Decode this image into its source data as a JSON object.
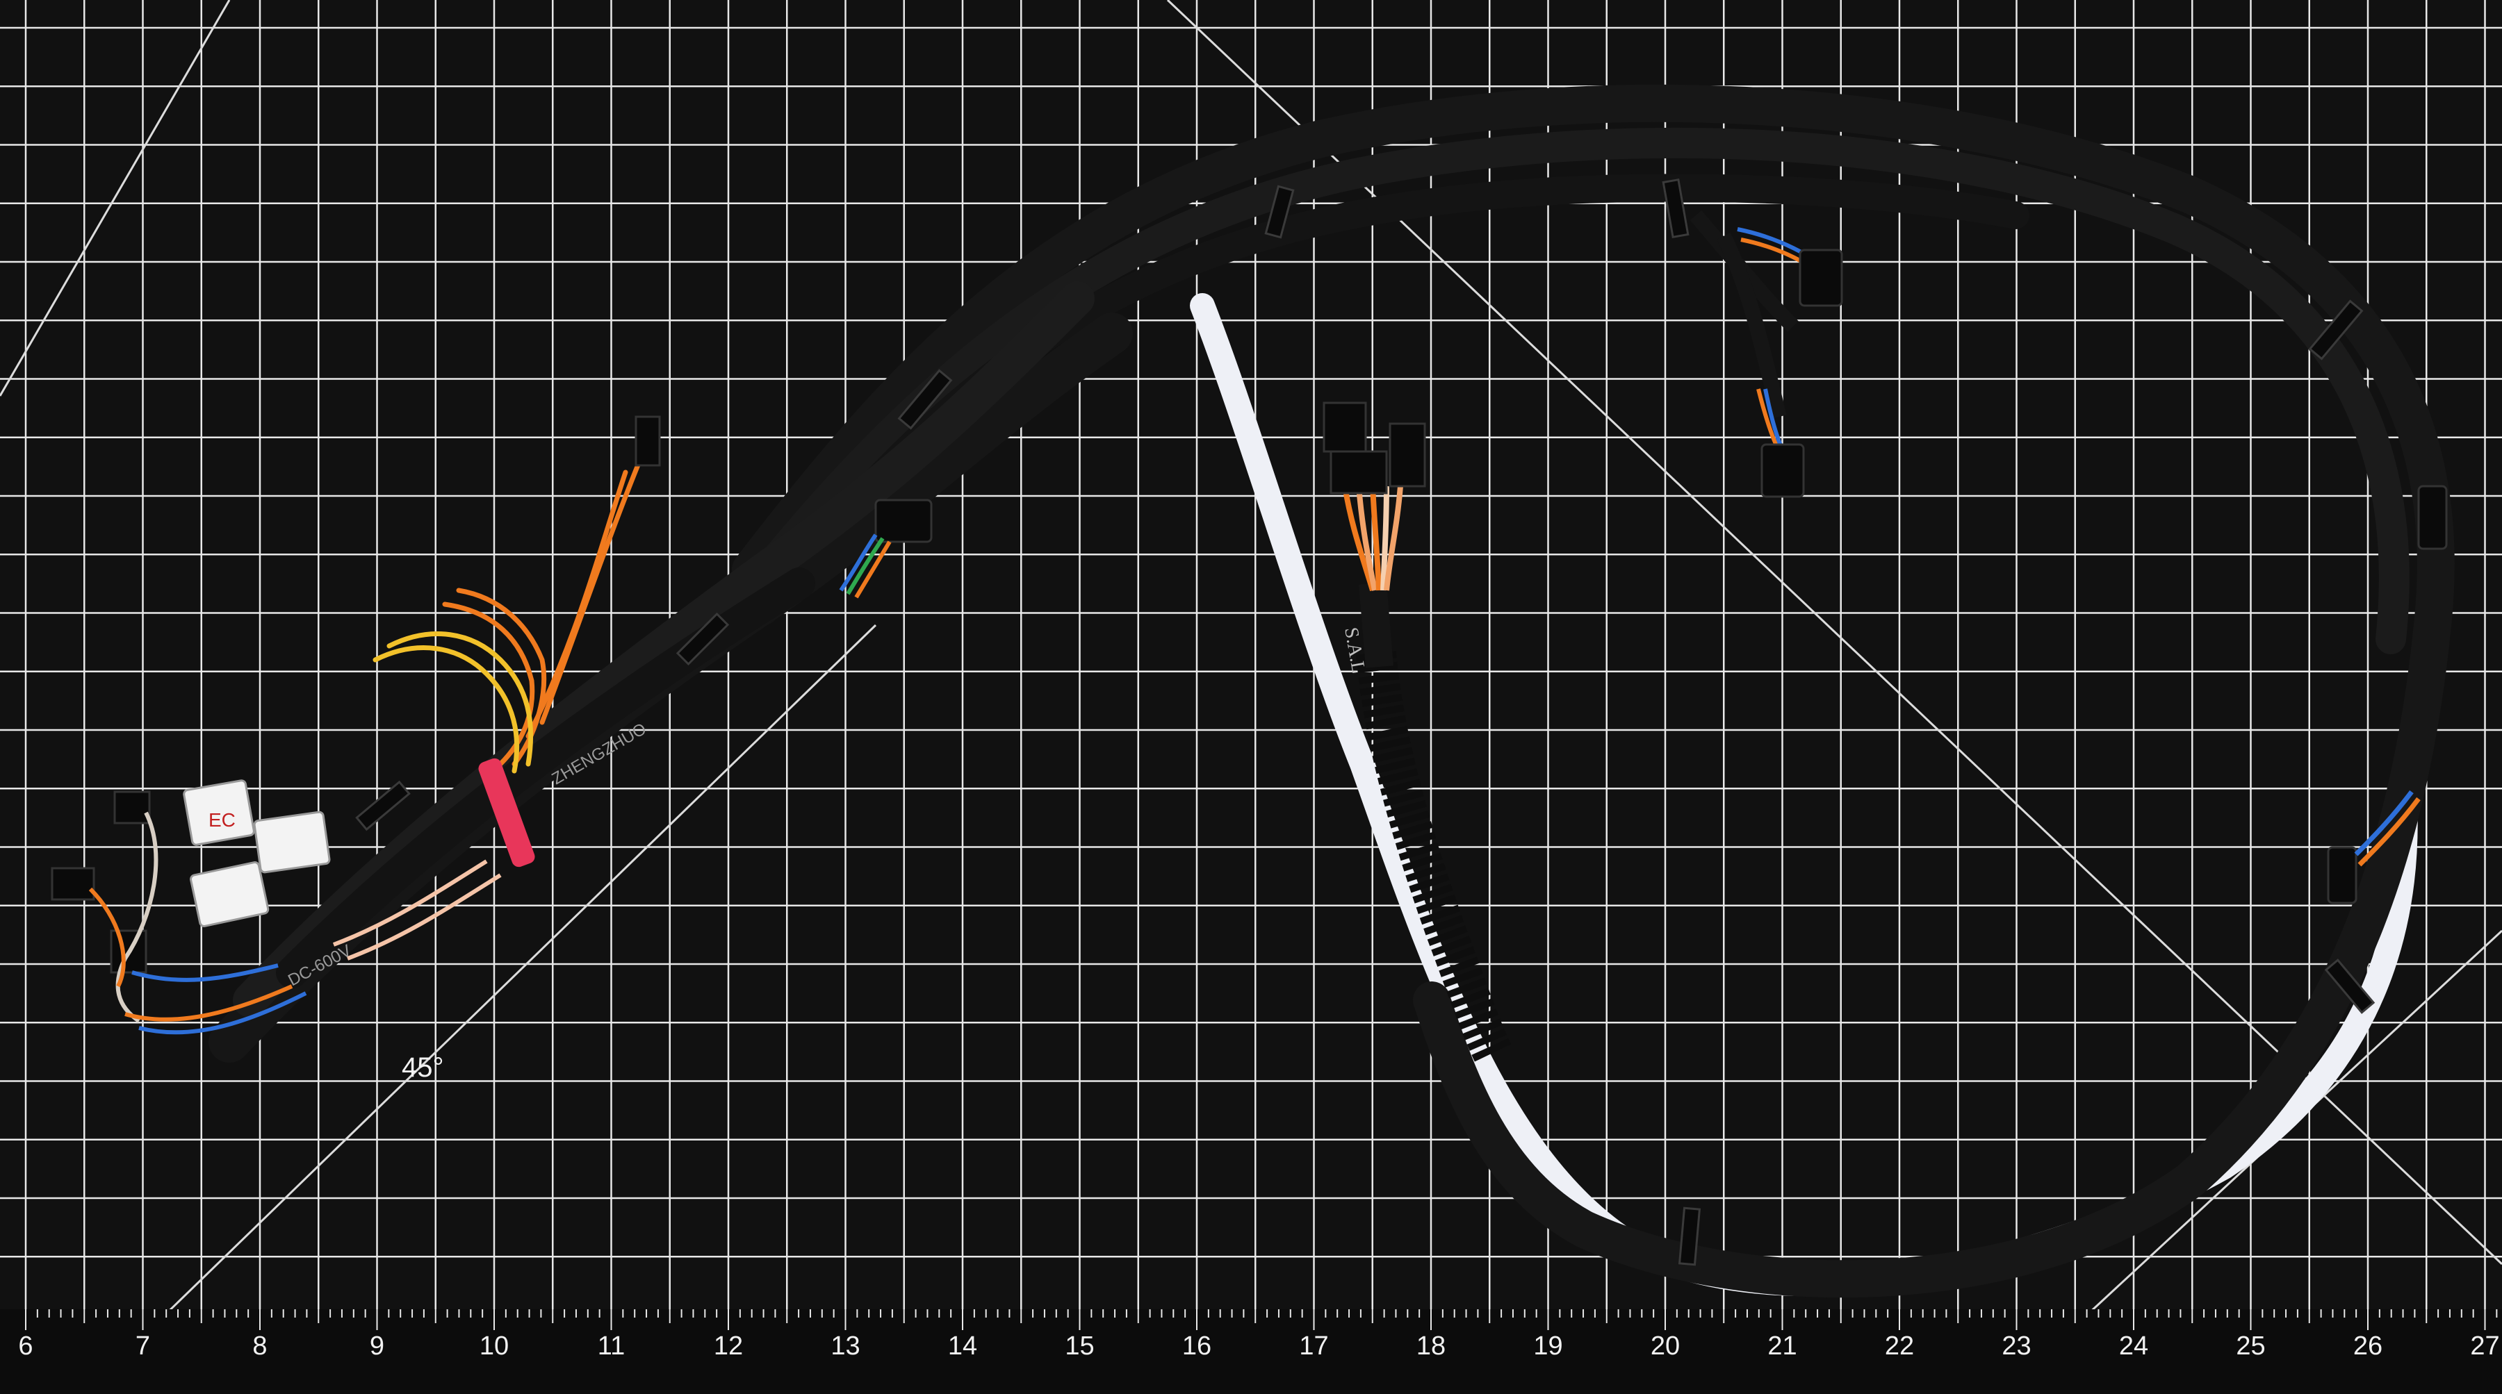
{
  "scene": {
    "subject": "black cable wiring harness with connectors on a cutting mat"
  },
  "ruler": {
    "numbers": [
      "6",
      "7",
      "8",
      "9",
      "10",
      "11",
      "12",
      "13",
      "14",
      "15",
      "16",
      "17",
      "18",
      "19",
      "20",
      "21",
      "22",
      "23",
      "24",
      "25",
      "26",
      "27"
    ]
  },
  "mat_marking": {
    "angle_label": "45°"
  },
  "cable_prints": {
    "left_bundle_1": "DC-600V",
    "left_bundle_2": "ZHENGZHUO",
    "center_sleeve": "S.A.L"
  },
  "connector_labels": {
    "white_connector": "EC"
  },
  "colors": {
    "mat": "#111111",
    "grid": "#e8e8e8",
    "cable": "#151515",
    "white_cable": "#eef0f6",
    "orange_wire": "#f07a1e",
    "yellow_wire": "#f2c12a",
    "pink_tie": "#e8365a",
    "blue_wire": "#2e6fd9"
  }
}
